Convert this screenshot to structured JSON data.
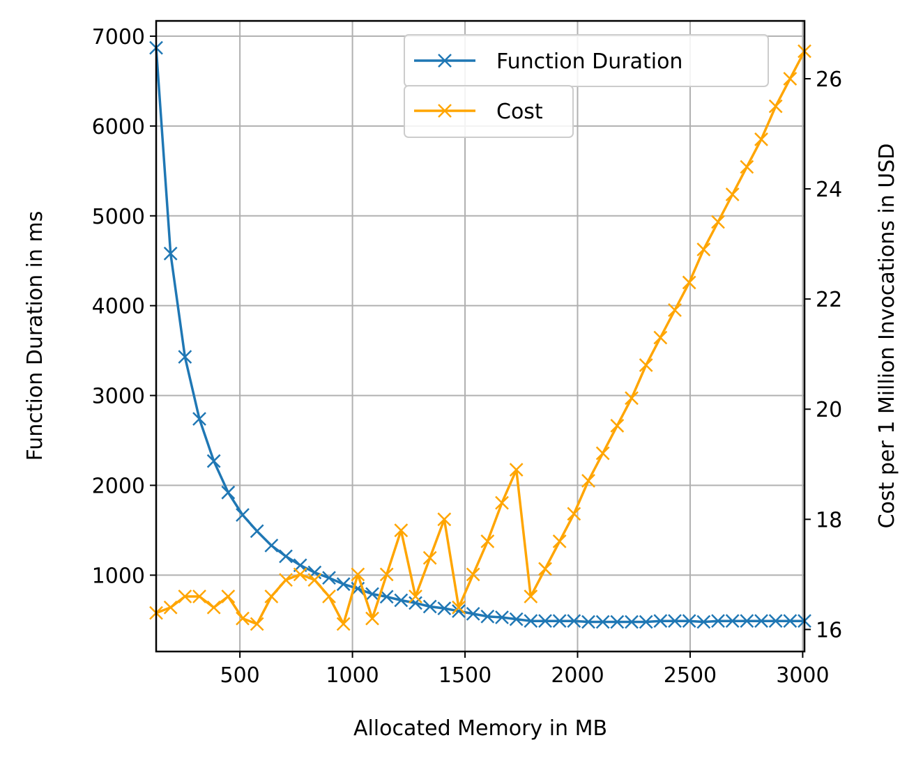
{
  "chart_data": {
    "type": "line",
    "xlabel": "Allocated Memory in MB",
    "ylabel_left": "Function Duration in ms",
    "ylabel_right": "Cost per 1 Million Invocations in USD",
    "xlim": [
      128,
      3008
    ],
    "ylim_left": [
      150,
      7170
    ],
    "ylim_right": [
      15.6,
      27.05
    ],
    "x_ticks": [
      500,
      1000,
      1500,
      2000,
      2500,
      3000
    ],
    "y_ticks_left": [
      1000,
      2000,
      3000,
      4000,
      5000,
      6000,
      7000
    ],
    "y_ticks_right": [
      16,
      18,
      20,
      22,
      24,
      26
    ],
    "grid": true,
    "legend_position": "top-right",
    "colors": {
      "duration": "#1f77b4",
      "cost": "#ffa500",
      "grid": "#b0b0b0"
    },
    "x": [
      128,
      192,
      256,
      320,
      384,
      448,
      512,
      576,
      640,
      704,
      768,
      832,
      896,
      960,
      1024,
      1088,
      1152,
      1216,
      1280,
      1344,
      1408,
      1472,
      1536,
      1600,
      1664,
      1728,
      1792,
      1856,
      1920,
      1984,
      2048,
      2112,
      2176,
      2240,
      2304,
      2368,
      2432,
      2496,
      2560,
      2624,
      2688,
      2752,
      2816,
      2880,
      2944,
      3008
    ],
    "series": [
      {
        "name": "Function Duration",
        "axis": "left",
        "values": [
          6870,
          4580,
          3430,
          2740,
          2270,
          1920,
          1670,
          1490,
          1330,
          1210,
          1110,
          1030,
          970,
          900,
          850,
          790,
          760,
          720,
          690,
          650,
          630,
          600,
          570,
          540,
          530,
          510,
          490,
          490,
          490,
          490,
          480,
          480,
          480,
          480,
          480,
          490,
          490,
          490,
          480,
          490,
          490,
          490,
          490,
          490,
          490,
          490
        ]
      },
      {
        "name": "Cost",
        "axis": "right",
        "values": [
          16.3,
          16.4,
          16.6,
          16.6,
          16.4,
          16.6,
          16.2,
          16.1,
          16.6,
          16.9,
          17.0,
          16.9,
          16.6,
          16.1,
          17.0,
          16.2,
          17.0,
          17.8,
          16.6,
          17.3,
          18.0,
          16.4,
          17.0,
          17.6,
          18.3,
          18.9,
          16.6,
          17.1,
          17.6,
          18.1,
          18.7,
          19.2,
          19.7,
          20.2,
          20.8,
          21.3,
          21.8,
          22.3,
          22.9,
          23.4,
          23.9,
          24.4,
          24.9,
          25.5,
          26.0,
          26.5
        ]
      }
    ]
  }
}
